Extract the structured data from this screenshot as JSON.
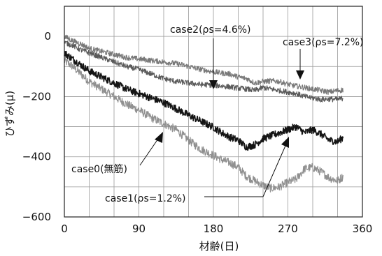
{
  "chart_data": {
    "type": "line",
    "title": "",
    "xlabel": "材齢(日)",
    "ylabel": "ひずみ(μ)",
    "xlim": [
      0,
      360
    ],
    "ylim": [
      -600,
      100
    ],
    "xticks": [
      0,
      90,
      180,
      270,
      360
    ],
    "yticks": [
      0,
      -200,
      -400,
      -600
    ],
    "x_tick_labels": [
      "0",
      "90",
      "180",
      "270",
      "360"
    ],
    "y_tick_labels": [
      "0",
      "−200",
      "−400",
      "−600"
    ],
    "grid": true,
    "legend": "none",
    "series": [
      {
        "name": "case0(無筋)",
        "color": "#141414",
        "x": [
          0,
          10,
          20,
          30,
          45,
          60,
          75,
          90,
          105,
          120,
          135,
          150,
          165,
          180,
          190,
          200,
          210,
          220,
          230,
          240,
          250,
          260,
          270,
          280,
          290,
          300,
          310,
          320,
          330,
          337
        ],
        "y": [
          -55,
          -75,
          -95,
          -115,
          -135,
          -155,
          -175,
          -190,
          -205,
          -220,
          -240,
          -262,
          -282,
          -302,
          -320,
          -335,
          -345,
          -368,
          -360,
          -340,
          -330,
          -320,
          -310,
          -300,
          -320,
          -310,
          -325,
          -345,
          -350,
          -335
        ]
      },
      {
        "name": "case1(ρs=1.2%)",
        "color": "#909090",
        "x": [
          0,
          10,
          20,
          30,
          45,
          60,
          75,
          90,
          105,
          120,
          135,
          150,
          165,
          180,
          190,
          200,
          210,
          220,
          230,
          240,
          250,
          260,
          270,
          280,
          290,
          300,
          310,
          320,
          330,
          337
        ],
        "y": [
          -80,
          -100,
          -125,
          -150,
          -175,
          -200,
          -225,
          -245,
          -270,
          -290,
          -310,
          -345,
          -375,
          -395,
          -410,
          -420,
          -435,
          -465,
          -480,
          -495,
          -505,
          -500,
          -485,
          -475,
          -440,
          -435,
          -450,
          -470,
          -480,
          -465
        ]
      },
      {
        "name": "case2(ρs=4.6%)",
        "color": "#5a5a5a",
        "x": [
          0,
          10,
          20,
          30,
          45,
          60,
          75,
          90,
          105,
          120,
          135,
          150,
          165,
          180,
          190,
          200,
          210,
          220,
          230,
          240,
          250,
          260,
          270,
          280,
          290,
          300,
          310,
          320,
          330,
          337
        ],
        "y": [
          -20,
          -30,
          -45,
          -55,
          -70,
          -85,
          -100,
          -110,
          -125,
          -140,
          -150,
          -155,
          -160,
          -162,
          -165,
          -168,
          -172,
          -175,
          -180,
          -170,
          -175,
          -180,
          -185,
          -190,
          -200,
          -205,
          -210,
          -208,
          -210,
          -205
        ]
      },
      {
        "name": "case3(ρs=7.2%)",
        "color": "#787878",
        "x": [
          0,
          10,
          20,
          30,
          45,
          60,
          75,
          90,
          105,
          120,
          135,
          150,
          165,
          180,
          190,
          200,
          210,
          220,
          230,
          240,
          250,
          260,
          270,
          280,
          290,
          300,
          310,
          320,
          330,
          337
        ],
        "y": [
          0,
          -15,
          -25,
          -40,
          -50,
          -60,
          -70,
          -75,
          -80,
          -85,
          -90,
          -100,
          -110,
          -118,
          -122,
          -125,
          -135,
          -140,
          -155,
          -150,
          -148,
          -150,
          -160,
          -165,
          -170,
          -175,
          -180,
          -185,
          -180,
          -178
        ]
      }
    ],
    "annotations": [
      {
        "text": "case2(ρs=4.6%)",
        "series": "case2(ρs=4.6%)"
      },
      {
        "text": "case3(ρs=7.2%)",
        "series": "case3(ρs=7.2%)"
      },
      {
        "text": "case0(無筋)",
        "series": "case0(無筋)"
      },
      {
        "text": "case1(ρs=1.2%)",
        "series": "case1(ρs=1.2%)"
      }
    ]
  }
}
